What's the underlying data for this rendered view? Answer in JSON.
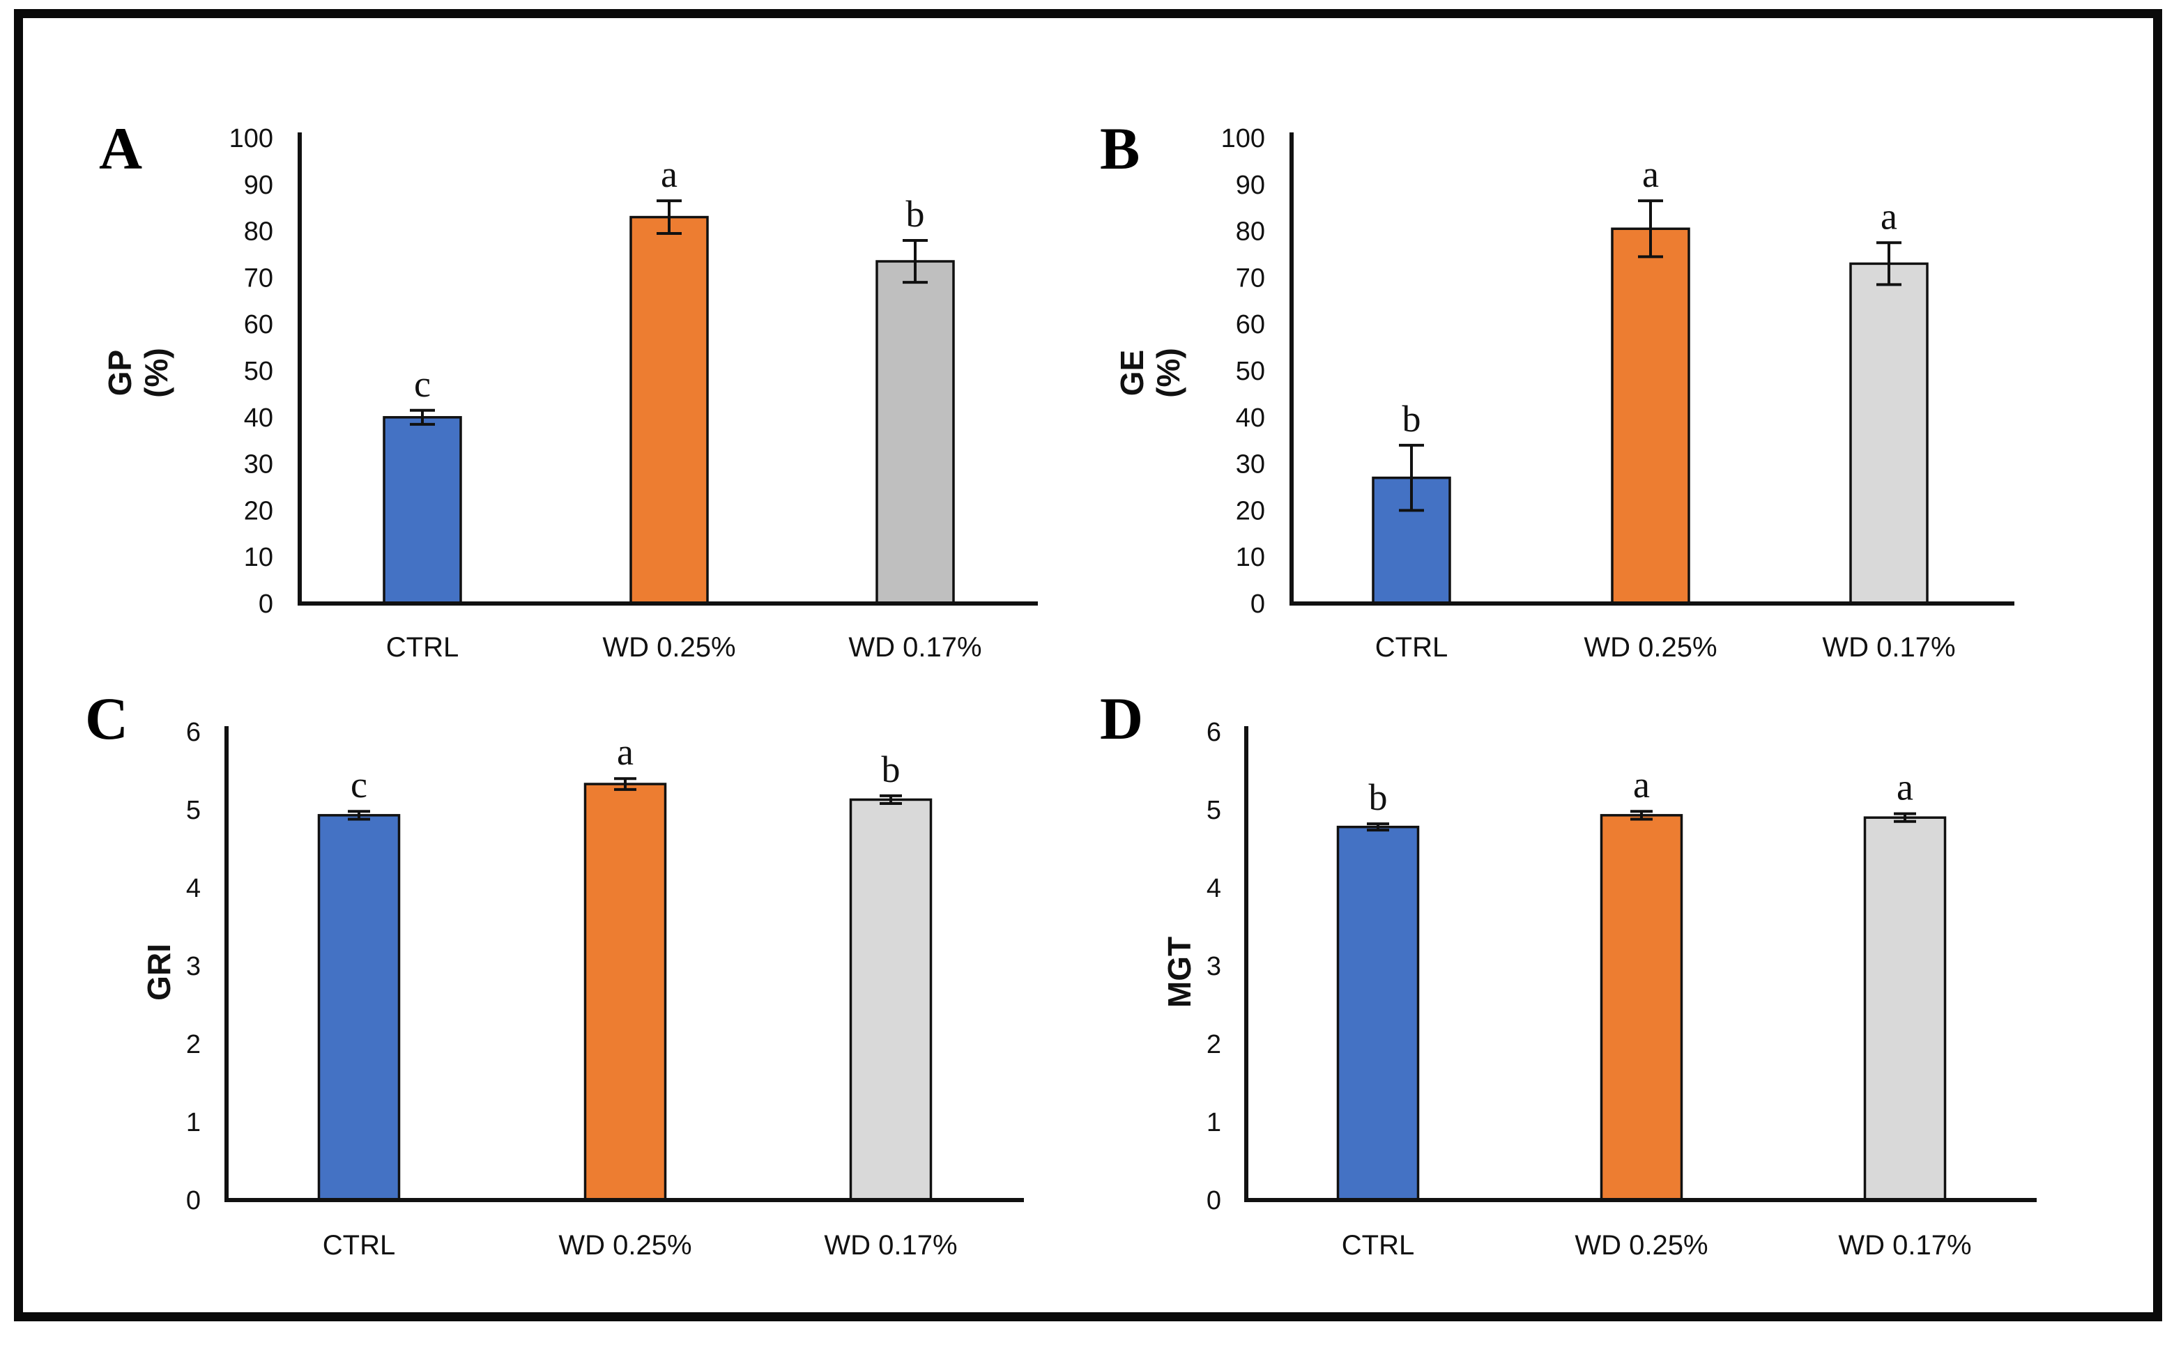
{
  "figure": {
    "background": "#ffffff",
    "border_color": "#0a0a0a",
    "description_colors": {
      "ctrl_blue": "#4472C4",
      "wd025_orange": "#ED7D31",
      "wd017_gray_panel_a": "#BFBFBF",
      "wd017_gray_panels_bcd": "#D9D9D9"
    }
  },
  "chart_data": [
    {
      "type": "bar",
      "panel": "A",
      "ylabel": "GP (%)",
      "ylabel_lines": [
        "GP",
        "(%)"
      ],
      "categories": [
        "CTRL",
        "WD 0.25%",
        "WD 0.17%"
      ],
      "values": [
        40,
        83,
        73.5
      ],
      "errors": [
        1.5,
        3.5,
        4.5
      ],
      "sig_letters": [
        "c",
        "a",
        "b"
      ],
      "colors": [
        "#4472C4",
        "#ED7D31",
        "#BFBFBF"
      ],
      "ylim": [
        0,
        100
      ],
      "ytick_step": 10,
      "grid": false,
      "legend": false
    },
    {
      "type": "bar",
      "panel": "B",
      "ylabel": "GE (%)",
      "ylabel_lines": [
        "GE",
        "(%)"
      ],
      "categories": [
        "CTRL",
        "WD 0.25%",
        "WD 0.17%"
      ],
      "values": [
        27,
        80.5,
        73
      ],
      "errors": [
        7,
        6,
        4.5
      ],
      "sig_letters": [
        "b",
        "a",
        "a"
      ],
      "colors": [
        "#4472C4",
        "#ED7D31",
        "#D9D9D9"
      ],
      "ylim": [
        0,
        100
      ],
      "ytick_step": 10,
      "grid": false,
      "legend": false
    },
    {
      "type": "bar",
      "panel": "C",
      "ylabel": "GRI",
      "ylabel_lines": [
        "GRI"
      ],
      "categories": [
        "CTRL",
        "WD 0.25%",
        "WD 0.17%"
      ],
      "values": [
        4.93,
        5.33,
        5.13
      ],
      "errors": [
        0.05,
        0.07,
        0.05
      ],
      "sig_letters": [
        "c",
        "a",
        "b"
      ],
      "colors": [
        "#4472C4",
        "#ED7D31",
        "#D9D9D9"
      ],
      "ylim": [
        0,
        6
      ],
      "ytick_step": 1,
      "grid": false,
      "legend": false
    },
    {
      "type": "bar",
      "panel": "D",
      "ylabel": "MGT",
      "ylabel_lines": [
        "MGT"
      ],
      "categories": [
        "CTRL",
        "WD 0.25%",
        "WD 0.17%"
      ],
      "values": [
        4.78,
        4.93,
        4.9
      ],
      "errors": [
        0.04,
        0.05,
        0.05
      ],
      "sig_letters": [
        "b",
        "a",
        "a"
      ],
      "colors": [
        "#4472C4",
        "#ED7D31",
        "#D9D9D9"
      ],
      "ylim": [
        0,
        6
      ],
      "ytick_step": 1,
      "grid": false,
      "legend": false
    }
  ]
}
